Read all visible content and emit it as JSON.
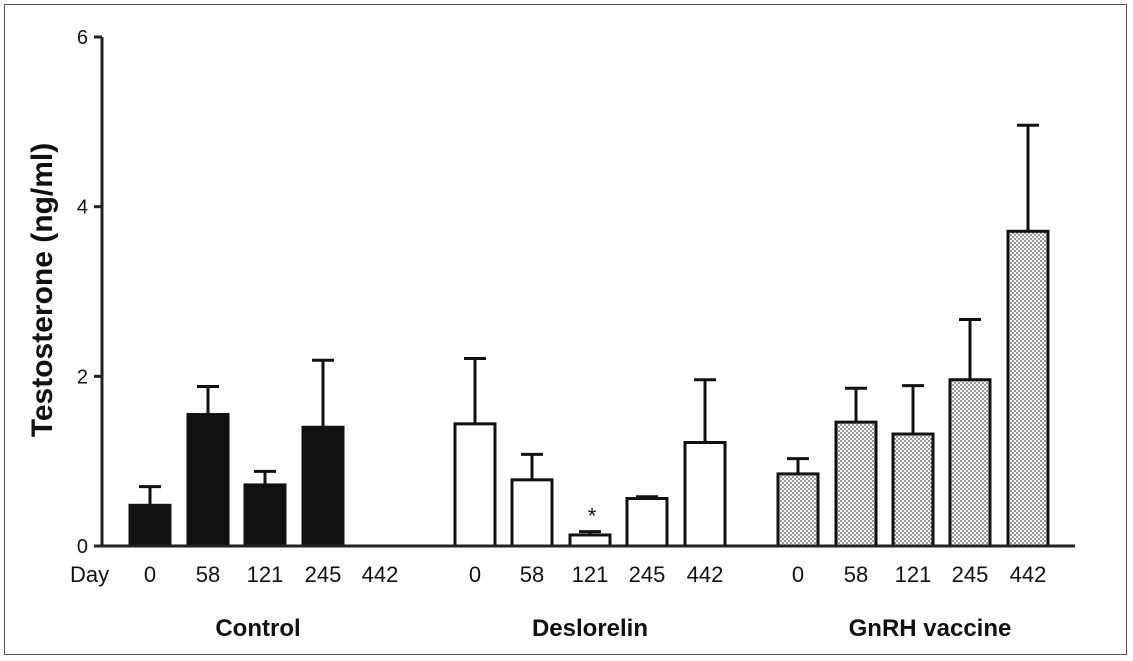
{
  "chart_data": {
    "type": "bar",
    "ylabel": "Testosterone  (ng/ml)",
    "x_prefix_label": "Day",
    "ylim": [
      0,
      6
    ],
    "yticks": [
      "0",
      "2",
      "4",
      "6"
    ],
    "ytick_values": [
      0,
      2,
      4,
      6
    ],
    "groups": [
      {
        "name": "Control",
        "fill": "#111111",
        "pattern": "solid",
        "days": [
          "0",
          "58",
          "121",
          "245",
          "442"
        ],
        "values": [
          0.48,
          1.55,
          0.72,
          1.4,
          null
        ],
        "errors": [
          0.22,
          0.33,
          0.16,
          0.79,
          null
        ],
        "annotations": [
          "",
          "",
          "",
          "",
          ""
        ]
      },
      {
        "name": "Deslorelin",
        "fill": "#ffffff",
        "pattern": "open",
        "days": [
          "0",
          "58",
          "121",
          "245",
          "442"
        ],
        "values": [
          1.44,
          0.78,
          0.13,
          0.56,
          1.22
        ],
        "errors": [
          0.77,
          0.3,
          0.04,
          0.02,
          0.74
        ],
        "annotations": [
          "",
          "",
          "*",
          "",
          ""
        ]
      },
      {
        "name": "GnRH vaccine",
        "fill": "#e8e8e8",
        "pattern": "dotted",
        "days": [
          "0",
          "58",
          "121",
          "245",
          "442"
        ],
        "values": [
          0.85,
          1.46,
          1.32,
          1.96,
          3.71
        ],
        "errors": [
          0.18,
          0.4,
          0.57,
          0.71,
          1.25
        ],
        "annotations": [
          "",
          "",
          "",
          "",
          ""
        ]
      }
    ]
  }
}
